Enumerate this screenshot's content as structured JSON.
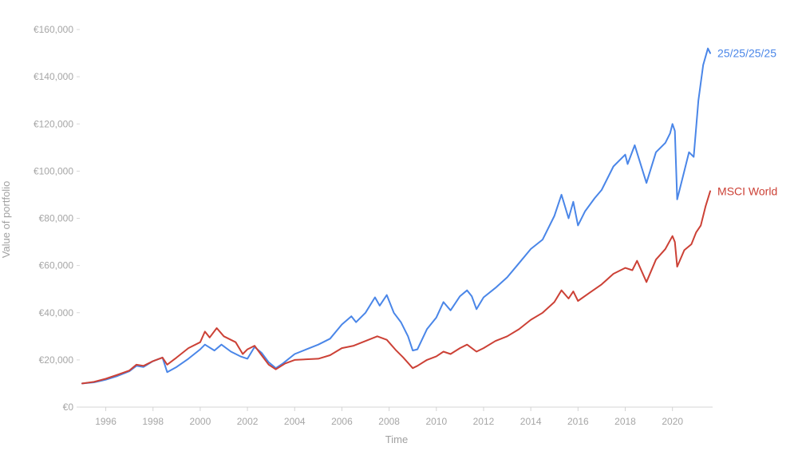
{
  "chart_data": {
    "type": "line",
    "title": "",
    "xlabel": "Time",
    "ylabel": "Value of portfolio",
    "x_unit": "year",
    "xlim": [
      1994.9,
      2021.7
    ],
    "ylim": [
      0,
      160000
    ],
    "y_ticks": [
      {
        "value": 0,
        "label": "€0"
      },
      {
        "value": 20000,
        "label": "€20,000"
      },
      {
        "value": 40000,
        "label": "€40,000"
      },
      {
        "value": 60000,
        "label": "€60,000"
      },
      {
        "value": 80000,
        "label": "€80,000"
      },
      {
        "value": 100000,
        "label": "€100,000"
      },
      {
        "value": 120000,
        "label": "€120,000"
      },
      {
        "value": 140000,
        "label": "€140,000"
      },
      {
        "value": 160000,
        "label": "€160,000"
      }
    ],
    "x_ticks": [
      {
        "value": 1996,
        "label": "1996"
      },
      {
        "value": 1998,
        "label": "1998"
      },
      {
        "value": 2000,
        "label": "2000"
      },
      {
        "value": 2002,
        "label": "2002"
      },
      {
        "value": 2004,
        "label": "2004"
      },
      {
        "value": 2006,
        "label": "2006"
      },
      {
        "value": 2008,
        "label": "2008"
      },
      {
        "value": 2010,
        "label": "2010"
      },
      {
        "value": 2012,
        "label": "2012"
      },
      {
        "value": 2014,
        "label": "2014"
      },
      {
        "value": 2016,
        "label": "2016"
      },
      {
        "value": 2018,
        "label": "2018"
      },
      {
        "value": 2020,
        "label": "2020"
      }
    ],
    "grid": false,
    "legend": "end-of-line labels",
    "series": [
      {
        "name": "25/25/25/25",
        "color": "#4a86e8",
        "points": [
          [
            1995.0,
            10000
          ],
          [
            1995.5,
            10500
          ],
          [
            1996.0,
            11600
          ],
          [
            1996.5,
            13200
          ],
          [
            1997.0,
            15200
          ],
          [
            1997.3,
            17500
          ],
          [
            1997.6,
            17000
          ],
          [
            1998.0,
            19500
          ],
          [
            1998.4,
            21000
          ],
          [
            1998.6,
            14800
          ],
          [
            1999.0,
            17000
          ],
          [
            1999.5,
            20500
          ],
          [
            2000.0,
            24500
          ],
          [
            2000.2,
            26500
          ],
          [
            2000.6,
            24000
          ],
          [
            2000.9,
            26500
          ],
          [
            2001.3,
            23500
          ],
          [
            2001.7,
            21500
          ],
          [
            2002.0,
            20500
          ],
          [
            2002.3,
            25500
          ],
          [
            2002.6,
            23000
          ],
          [
            2002.9,
            19000
          ],
          [
            2003.2,
            16500
          ],
          [
            2003.5,
            18500
          ],
          [
            2004.0,
            22500
          ],
          [
            2004.5,
            24500
          ],
          [
            2005.0,
            26500
          ],
          [
            2005.5,
            29000
          ],
          [
            2006.0,
            35000
          ],
          [
            2006.4,
            38500
          ],
          [
            2006.6,
            36000
          ],
          [
            2007.0,
            40000
          ],
          [
            2007.4,
            46500
          ],
          [
            2007.6,
            43000
          ],
          [
            2007.9,
            47500
          ],
          [
            2008.2,
            40000
          ],
          [
            2008.5,
            36000
          ],
          [
            2008.8,
            30000
          ],
          [
            2009.0,
            24000
          ],
          [
            2009.2,
            24500
          ],
          [
            2009.6,
            33000
          ],
          [
            2010.0,
            38000
          ],
          [
            2010.3,
            44500
          ],
          [
            2010.6,
            41000
          ],
          [
            2011.0,
            47000
          ],
          [
            2011.3,
            49500
          ],
          [
            2011.5,
            47000
          ],
          [
            2011.7,
            41500
          ],
          [
            2012.0,
            46500
          ],
          [
            2012.5,
            50500
          ],
          [
            2013.0,
            55000
          ],
          [
            2013.5,
            61000
          ],
          [
            2014.0,
            67000
          ],
          [
            2014.5,
            71000
          ],
          [
            2015.0,
            81000
          ],
          [
            2015.3,
            90000
          ],
          [
            2015.6,
            80000
          ],
          [
            2015.8,
            87000
          ],
          [
            2016.0,
            77000
          ],
          [
            2016.3,
            83000
          ],
          [
            2016.7,
            88500
          ],
          [
            2017.0,
            92000
          ],
          [
            2017.5,
            102000
          ],
          [
            2018.0,
            107000
          ],
          [
            2018.1,
            103000
          ],
          [
            2018.4,
            111000
          ],
          [
            2018.9,
            95000
          ],
          [
            2019.3,
            108000
          ],
          [
            2019.7,
            112000
          ],
          [
            2019.9,
            116000
          ],
          [
            2020.0,
            120000
          ],
          [
            2020.1,
            117000
          ],
          [
            2020.2,
            88000
          ],
          [
            2020.5,
            100000
          ],
          [
            2020.7,
            108000
          ],
          [
            2020.9,
            106000
          ],
          [
            2021.1,
            130000
          ],
          [
            2021.3,
            145000
          ],
          [
            2021.5,
            152000
          ],
          [
            2021.6,
            150000
          ]
        ]
      },
      {
        "name": "MSCI World",
        "color": "#cc4136",
        "points": [
          [
            1995.0,
            10000
          ],
          [
            1995.5,
            10700
          ],
          [
            1996.0,
            12000
          ],
          [
            1996.5,
            13700
          ],
          [
            1997.0,
            15500
          ],
          [
            1997.3,
            18000
          ],
          [
            1997.6,
            17500
          ],
          [
            1998.0,
            19500
          ],
          [
            1998.4,
            21000
          ],
          [
            1998.6,
            18000
          ],
          [
            1999.0,
            21000
          ],
          [
            1999.5,
            25000
          ],
          [
            2000.0,
            27500
          ],
          [
            2000.2,
            32000
          ],
          [
            2000.4,
            29500
          ],
          [
            2000.7,
            33500
          ],
          [
            2001.0,
            30000
          ],
          [
            2001.5,
            27500
          ],
          [
            2001.8,
            22500
          ],
          [
            2002.0,
            24500
          ],
          [
            2002.3,
            26000
          ],
          [
            2002.6,
            22000
          ],
          [
            2002.9,
            18000
          ],
          [
            2003.2,
            16000
          ],
          [
            2003.6,
            18500
          ],
          [
            2004.0,
            20000
          ],
          [
            2005.0,
            20500
          ],
          [
            2005.5,
            22000
          ],
          [
            2006.0,
            25000
          ],
          [
            2006.5,
            26000
          ],
          [
            2007.0,
            28000
          ],
          [
            2007.5,
            30000
          ],
          [
            2007.9,
            28500
          ],
          [
            2008.3,
            24000
          ],
          [
            2008.6,
            21000
          ],
          [
            2009.0,
            16500
          ],
          [
            2009.2,
            17500
          ],
          [
            2009.6,
            20000
          ],
          [
            2010.0,
            21500
          ],
          [
            2010.3,
            23500
          ],
          [
            2010.6,
            22500
          ],
          [
            2011.0,
            25000
          ],
          [
            2011.3,
            26500
          ],
          [
            2011.7,
            23500
          ],
          [
            2012.0,
            25000
          ],
          [
            2012.5,
            28000
          ],
          [
            2013.0,
            30000
          ],
          [
            2013.5,
            33000
          ],
          [
            2014.0,
            37000
          ],
          [
            2014.5,
            40000
          ],
          [
            2015.0,
            44500
          ],
          [
            2015.3,
            49500
          ],
          [
            2015.6,
            46000
          ],
          [
            2015.8,
            49000
          ],
          [
            2016.0,
            45000
          ],
          [
            2016.5,
            48500
          ],
          [
            2017.0,
            52000
          ],
          [
            2017.5,
            56500
          ],
          [
            2018.0,
            59000
          ],
          [
            2018.3,
            58000
          ],
          [
            2018.5,
            62000
          ],
          [
            2018.9,
            53000
          ],
          [
            2019.3,
            62500
          ],
          [
            2019.7,
            67000
          ],
          [
            2020.0,
            72500
          ],
          [
            2020.1,
            70000
          ],
          [
            2020.2,
            59500
          ],
          [
            2020.5,
            66500
          ],
          [
            2020.8,
            69000
          ],
          [
            2021.0,
            74000
          ],
          [
            2021.2,
            77000
          ],
          [
            2021.4,
            85000
          ],
          [
            2021.6,
            91500
          ]
        ]
      }
    ]
  }
}
